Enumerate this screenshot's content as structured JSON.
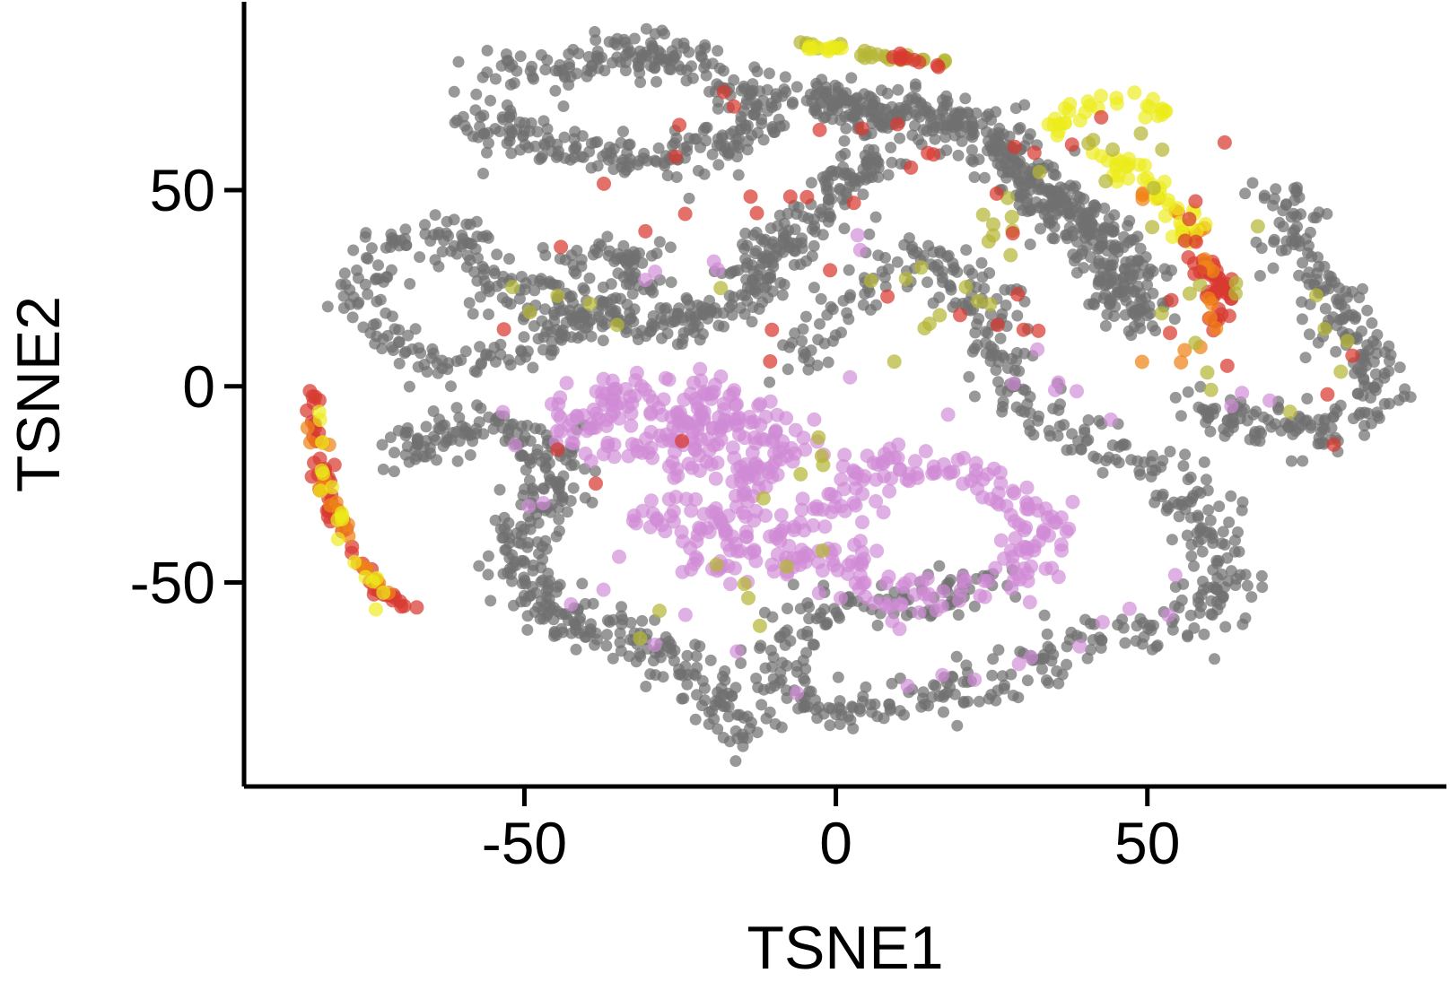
{
  "chart_data": {
    "type": "scatter",
    "title": "",
    "xlabel": "TSNE1",
    "ylabel": "TSNE2",
    "xlim": [
      -95,
      98
    ],
    "ylim": [
      -102,
      98
    ],
    "x_ticks": [
      -50,
      0,
      50
    ],
    "y_ticks": [
      -50,
      0,
      50
    ],
    "grid": false,
    "legend": "none",
    "colors": {
      "gray": "#707070",
      "violet": "#d08ad6",
      "olive": "#b6b636",
      "yellow": "#ecec1a",
      "orange": "#f08418",
      "red": "#d83a30"
    },
    "clusters": [
      {
        "color": "gray",
        "n": 360,
        "spread": 2.8,
        "path": [
          [
            -55,
            80
          ],
          [
            -45,
            82
          ],
          [
            -35,
            85
          ],
          [
            -28,
            84
          ],
          [
            -20,
            80
          ],
          [
            -12,
            76
          ],
          [
            -12,
            68
          ],
          [
            -18,
            60
          ],
          [
            -25,
            58
          ],
          [
            -33,
            58
          ],
          [
            -40,
            60
          ],
          [
            -48,
            62
          ],
          [
            -54,
            65
          ],
          [
            -58,
            70
          ]
        ]
      },
      {
        "color": "gray",
        "n": 300,
        "spread": 2.8,
        "path": [
          [
            -78,
            20
          ],
          [
            -74,
            30
          ],
          [
            -70,
            38
          ],
          [
            -62,
            40
          ],
          [
            -58,
            34
          ],
          [
            -55,
            26
          ],
          [
            -50,
            22
          ],
          [
            -45,
            28
          ],
          [
            -40,
            32
          ],
          [
            -35,
            36
          ],
          [
            -32,
            30
          ],
          [
            -38,
            22
          ],
          [
            -45,
            12
          ],
          [
            -55,
            7
          ],
          [
            -64,
            5
          ],
          [
            -70,
            10
          ],
          [
            -74,
            16
          ]
        ]
      },
      {
        "color": "gray",
        "n": 300,
        "spread": 2.8,
        "path": [
          [
            -45,
            20
          ],
          [
            -38,
            18
          ],
          [
            -30,
            17
          ],
          [
            -25,
            16
          ],
          [
            -20,
            18
          ],
          [
            -15,
            22
          ],
          [
            -12,
            32
          ],
          [
            -8,
            38
          ],
          [
            -3,
            45
          ],
          [
            2,
            52
          ],
          [
            8,
            60
          ]
        ]
      },
      {
        "color": "gray",
        "n": 560,
        "spread": 3.0,
        "path": [
          [
            -6,
            72
          ],
          [
            2,
            71
          ],
          [
            10,
            70
          ],
          [
            18,
            68
          ],
          [
            24,
            64
          ],
          [
            28,
            58
          ],
          [
            32,
            52
          ],
          [
            36,
            46
          ],
          [
            40,
            40
          ],
          [
            44,
            34
          ],
          [
            46,
            28
          ],
          [
            48,
            22
          ],
          [
            49,
            16
          ]
        ]
      },
      {
        "color": "gray",
        "n": 620,
        "spread": 3.2,
        "path": [
          [
            -8,
            5
          ],
          [
            -4,
            10
          ],
          [
            0,
            18
          ],
          [
            6,
            28
          ],
          [
            12,
            35
          ],
          [
            18,
            30
          ],
          [
            22,
            22
          ],
          [
            25,
            15
          ],
          [
            27,
            8
          ],
          [
            28,
            2
          ],
          [
            30,
            -4
          ],
          [
            36,
            -10
          ],
          [
            42,
            -14
          ],
          [
            48,
            -18
          ],
          [
            52,
            -24
          ],
          [
            56,
            -30
          ],
          [
            60,
            -36
          ],
          [
            62,
            -44
          ],
          [
            62,
            -52
          ],
          [
            58,
            -58
          ],
          [
            52,
            -60
          ],
          [
            45,
            -62
          ],
          [
            38,
            -66
          ],
          [
            30,
            -72
          ],
          [
            22,
            -76
          ],
          [
            14,
            -80
          ],
          [
            6,
            -82
          ],
          [
            0,
            -82
          ],
          [
            -6,
            -80
          ],
          [
            -10,
            -74
          ],
          [
            -8,
            -66
          ],
          [
            -4,
            -58
          ],
          [
            2,
            -55
          ],
          [
            10,
            -55
          ],
          [
            18,
            -54
          ],
          [
            25,
            -50
          ]
        ]
      },
      {
        "color": "gray",
        "n": 400,
        "spread": 3.0,
        "path": [
          [
            -70,
            -18
          ],
          [
            -64,
            -12
          ],
          [
            -58,
            -10
          ],
          [
            -52,
            -12
          ],
          [
            -46,
            -18
          ],
          [
            -44,
            -26
          ],
          [
            -50,
            -34
          ],
          [
            -52,
            -42
          ],
          [
            -50,
            -50
          ],
          [
            -46,
            -58
          ],
          [
            -40,
            -62
          ],
          [
            -34,
            -62
          ],
          [
            -30,
            -66
          ],
          [
            -26,
            -70
          ],
          [
            -22,
            -76
          ],
          [
            -18,
            -84
          ],
          [
            -16,
            -90
          ]
        ]
      },
      {
        "color": "gray",
        "n": 260,
        "spread": 2.8,
        "path": [
          [
            57,
            -5
          ],
          [
            63,
            -8
          ],
          [
            70,
            -10
          ],
          [
            77,
            -10
          ],
          [
            83,
            -8
          ],
          [
            88,
            -2
          ],
          [
            85,
            6
          ],
          [
            82,
            14
          ],
          [
            80,
            22
          ],
          [
            77,
            30
          ],
          [
            74,
            37
          ],
          [
            72,
            44
          ],
          [
            70,
            50
          ]
        ]
      },
      {
        "color": "violet",
        "n": 240,
        "spread": 3.2,
        "path": [
          [
            -48,
            -10
          ],
          [
            -40,
            -4
          ],
          [
            -32,
            -2
          ],
          [
            -25,
            -3
          ],
          [
            -20,
            -6
          ],
          [
            -15,
            -8
          ],
          [
            -10,
            -12
          ],
          [
            -8,
            -18
          ],
          [
            -12,
            -22
          ],
          [
            -18,
            -25
          ],
          [
            -22,
            -20
          ],
          [
            -26,
            -10
          ],
          [
            -30,
            -12
          ],
          [
            -36,
            -14
          ],
          [
            -42,
            -14
          ]
        ]
      },
      {
        "color": "violet",
        "n": 300,
        "spread": 3.2,
        "path": [
          [
            -30,
            -36
          ],
          [
            -24,
            -32
          ],
          [
            -18,
            -34
          ],
          [
            -12,
            -38
          ],
          [
            -6,
            -36
          ],
          [
            0,
            -30
          ],
          [
            4,
            -24
          ],
          [
            8,
            -20
          ],
          [
            14,
            -18
          ],
          [
            20,
            -22
          ],
          [
            26,
            -28
          ],
          [
            32,
            -32
          ],
          [
            34,
            -38
          ],
          [
            30,
            -44
          ],
          [
            24,
            -50
          ],
          [
            18,
            -52
          ],
          [
            12,
            -54
          ],
          [
            6,
            -52
          ],
          [
            2,
            -46
          ],
          [
            -4,
            -42
          ],
          [
            -10,
            -44
          ],
          [
            -16,
            -46
          ],
          [
            -22,
            -44
          ],
          [
            -28,
            -40
          ]
        ]
      },
      {
        "color": "red",
        "n": 60,
        "spread": 0.7,
        "path": [
          [
            -84,
            -1
          ],
          [
            -84,
            -8
          ],
          [
            -83,
            -16
          ],
          [
            -82,
            -25
          ],
          [
            -80,
            -35
          ],
          [
            -77,
            -43
          ],
          [
            -74,
            -50
          ],
          [
            -71,
            -55
          ],
          [
            -66,
            -59
          ]
        ]
      },
      {
        "color": "orange",
        "n": 20,
        "spread": 0.9,
        "path": [
          [
            -83,
            -10
          ],
          [
            -81,
            -30
          ],
          [
            -77,
            -42
          ],
          [
            -72,
            -52
          ]
        ]
      },
      {
        "color": "yellow",
        "n": 18,
        "spread": 0.9,
        "path": [
          [
            -84,
            -4
          ],
          [
            -82,
            -22
          ],
          [
            -78,
            -40
          ],
          [
            -72,
            -56
          ]
        ]
      },
      {
        "color": "olive",
        "n": 24,
        "spread": 0.6,
        "path": [
          [
            -5,
            87
          ],
          [
            2,
            86
          ],
          [
            8,
            84
          ],
          [
            14,
            83
          ],
          [
            18,
            82
          ]
        ]
      },
      {
        "color": "red",
        "n": 10,
        "spread": 0.5,
        "path": [
          [
            8,
            84
          ],
          [
            14,
            83
          ],
          [
            17,
            82
          ]
        ]
      },
      {
        "color": "yellow",
        "n": 10,
        "spread": 0.5,
        "path": [
          [
            -5,
            87
          ],
          [
            0,
            86
          ],
          [
            4,
            85
          ]
        ]
      },
      {
        "color": "red",
        "n": 40,
        "spread": 1.1,
        "path": [
          [
            60,
            14
          ],
          [
            62,
            20
          ],
          [
            62,
            26
          ],
          [
            60,
            30
          ],
          [
            56,
            34
          ]
        ]
      },
      {
        "color": "orange",
        "n": 24,
        "spread": 1.2,
        "path": [
          [
            50,
            48
          ],
          [
            55,
            44
          ],
          [
            58,
            38
          ],
          [
            61,
            32
          ],
          [
            62,
            22
          ],
          [
            58,
            12
          ],
          [
            52,
            6
          ]
        ]
      },
      {
        "color": "yellow",
        "n": 40,
        "spread": 1.4,
        "path": [
          [
            42,
            60
          ],
          [
            46,
            56
          ],
          [
            52,
            48
          ],
          [
            56,
            42
          ],
          [
            59,
            36
          ]
        ]
      },
      {
        "color": "yellow",
        "n": 30,
        "spread": 1.4,
        "path": [
          [
            35,
            66
          ],
          [
            40,
            70
          ],
          [
            45,
            74
          ],
          [
            50,
            72
          ],
          [
            54,
            68
          ]
        ]
      },
      {
        "color": "olive",
        "n": 60,
        "spread": 2.5,
        "path": [
          [
            56,
            30
          ],
          [
            62,
            20
          ],
          [
            70,
            48
          ],
          [
            78,
            30
          ],
          [
            84,
            5
          ],
          [
            76,
            -10
          ],
          [
            62,
            -8
          ],
          [
            46,
            70
          ],
          [
            -20,
            -80
          ],
          [
            -28,
            -68
          ],
          [
            30,
            50
          ],
          [
            22,
            30
          ],
          [
            -55,
            20
          ]
        ]
      },
      {
        "color": "red",
        "n": 50,
        "spread": 2.4,
        "path": [
          [
            -45,
            34
          ],
          [
            -20,
            75
          ],
          [
            20,
            60
          ],
          [
            30,
            25
          ],
          [
            40,
            10
          ],
          [
            -6,
            30
          ],
          [
            2,
            28
          ],
          [
            -36,
            -28
          ],
          [
            -52,
            8
          ],
          [
            -60,
            30
          ],
          [
            60,
            70
          ],
          [
            55,
            10
          ],
          [
            82,
            10
          ],
          [
            77,
            -14
          ]
        ]
      },
      {
        "color": "violet",
        "n": 40,
        "spread": 2.8,
        "path": [
          [
            -40,
            40
          ],
          [
            -28,
            25
          ],
          [
            10,
            42
          ],
          [
            28,
            15
          ],
          [
            40,
            -10
          ],
          [
            54,
            -36
          ],
          [
            58,
            -56
          ],
          [
            0,
            -80
          ],
          [
            -38,
            -54
          ],
          [
            -55,
            -8
          ],
          [
            70,
            -2
          ]
        ]
      }
    ]
  }
}
